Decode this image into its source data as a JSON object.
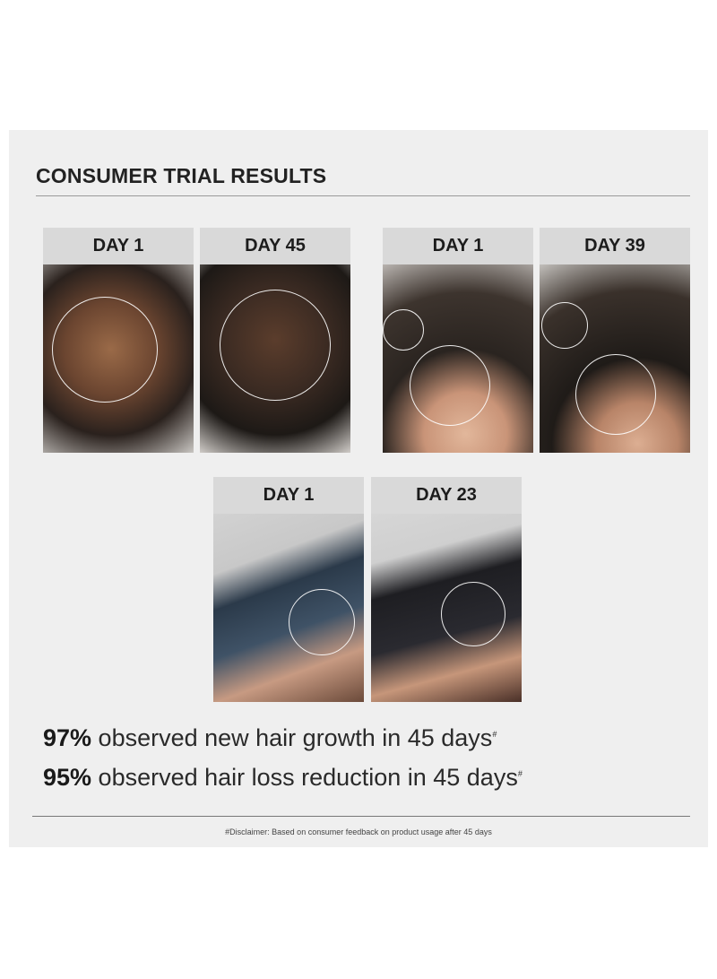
{
  "title": "CONSUMER TRIAL RESULTS",
  "comparisons": [
    {
      "before": "DAY 1",
      "after": "DAY 45"
    },
    {
      "before": "DAY 1",
      "after": "DAY 39"
    },
    {
      "before": "DAY 1",
      "after": "DAY 23"
    }
  ],
  "stats": [
    {
      "value": "97%",
      "text": " observed new hair growth in 45 days",
      "mark": "#"
    },
    {
      "value": "95%",
      "text": " observed hair loss reduction in 45 days",
      "mark": "#"
    }
  ],
  "disclaimer": "#Disclaimer: Based on consumer feedback on product usage after 45 days"
}
